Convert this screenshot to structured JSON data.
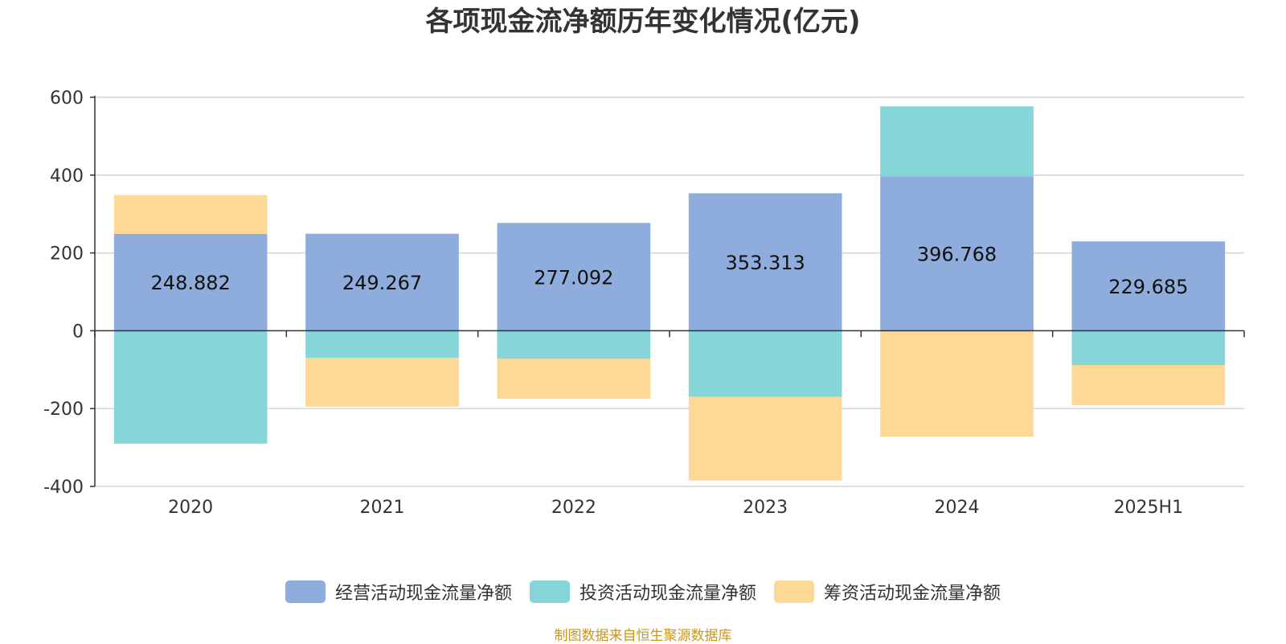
{
  "chart_data": {
    "type": "bar",
    "stacked": true,
    "title": "各项现金流净额历年变化情况(亿元)",
    "categories": [
      "2020",
      "2021",
      "2022",
      "2023",
      "2024",
      "2025H1"
    ],
    "ylim": [
      -400,
      600
    ],
    "yticks": [
      "600",
      "400",
      "200",
      "0",
      "-200",
      "-400"
    ],
    "ytick_values": [
      600,
      400,
      200,
      0,
      -200,
      -400
    ],
    "grid": true,
    "legend_position": "bottom",
    "series": [
      {
        "name": "经营活动现金流量净额",
        "color": "#8eacdc",
        "values": [
          248.882,
          249.267,
          277.092,
          353.313,
          396.768,
          229.685
        ],
        "labels": [
          "248.882",
          "249.267",
          "277.092",
          "353.313",
          "396.768",
          "229.685"
        ]
      },
      {
        "name": "投资活动现金流量净额",
        "color": "#86d5d8",
        "values": [
          -290,
          -70,
          -72,
          -170,
          180,
          -88
        ]
      },
      {
        "name": "筹资活动现金流量净额",
        "color": "#fed897",
        "values": [
          100,
          -125,
          -103,
          -215,
          -272,
          -103
        ]
      }
    ]
  },
  "source_note": "制图数据来自恒生聚源数据库"
}
